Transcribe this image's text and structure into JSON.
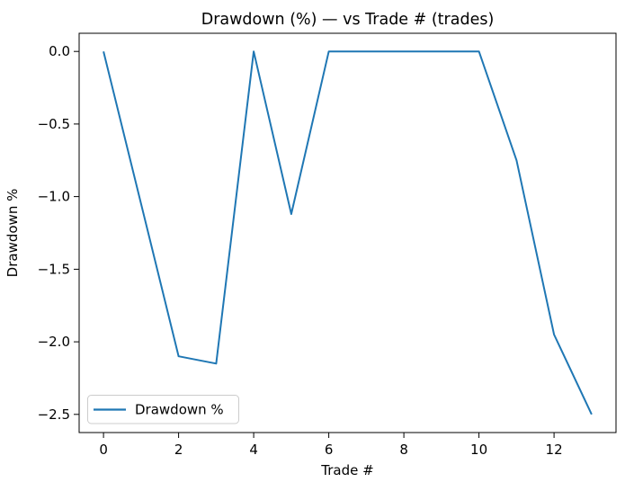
{
  "chart_data": {
    "type": "line",
    "title": "Drawdown (%) — vs Trade # (trades)",
    "xlabel": "Trade #",
    "ylabel": "Drawdown %",
    "x": [
      0,
      1,
      2,
      3,
      4,
      5,
      6,
      7,
      8,
      9,
      10,
      11,
      12,
      13
    ],
    "series": [
      {
        "name": "Drawdown %",
        "color": "#1f77b4",
        "values": [
          0.0,
          -1.05,
          -2.1,
          -2.15,
          0.0,
          -1.12,
          0.0,
          0.0,
          0.0,
          0.0,
          0.0,
          -0.75,
          -1.95,
          -2.5
        ]
      }
    ],
    "xlim": [
      -0.65,
      13.65
    ],
    "ylim": [
      -2.625,
      0.125
    ],
    "xticks": [
      0,
      2,
      4,
      6,
      8,
      10,
      12
    ],
    "xtick_labels": [
      "0",
      "2",
      "4",
      "6",
      "8",
      "10",
      "12"
    ],
    "yticks": [
      0.0,
      -0.5,
      -1.0,
      -1.5,
      -2.0,
      -2.5
    ],
    "ytick_labels": [
      "0.0",
      "−0.5",
      "−1.0",
      "−1.5",
      "−2.0",
      "−2.5"
    ],
    "grid": false,
    "legend_location": "lower left",
    "background_color": "#ffffff",
    "text_color": "#000000"
  }
}
